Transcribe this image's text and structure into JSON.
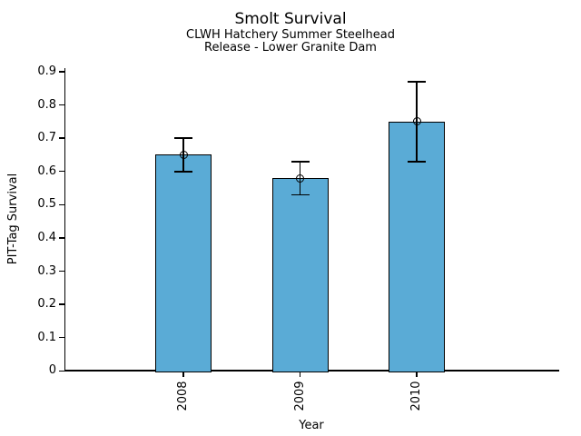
{
  "chart_data": {
    "type": "bar",
    "title": "Smolt Survival",
    "subtitle_lines": [
      "CLWH Hatchery Summer Steelhead",
      "Release - Lower Granite Dam"
    ],
    "categories": [
      "2008",
      "2009",
      "2010"
    ],
    "values": [
      0.65,
      0.58,
      0.75
    ],
    "error_bars": [
      {
        "low": 0.6,
        "high": 0.7
      },
      {
        "low": 0.53,
        "high": 0.63
      },
      {
        "low": 0.63,
        "high": 0.87
      }
    ],
    "xlabel": "Year",
    "ylabel": "PIT-Tag Survival",
    "ylim": [
      0,
      0.9
    ],
    "ytick_labels": [
      "0",
      "0.1",
      "0.2",
      "0.3",
      "0.4",
      "0.5",
      "0.6",
      "0.7",
      "0.8",
      "0.9"
    ],
    "marker": "open-circle",
    "grid": false,
    "legend_position": "none",
    "colors": {
      "bar_fill": "#5AABD6",
      "bar_edge": "#000000",
      "text": "#000000",
      "background": "#ffffff"
    }
  }
}
